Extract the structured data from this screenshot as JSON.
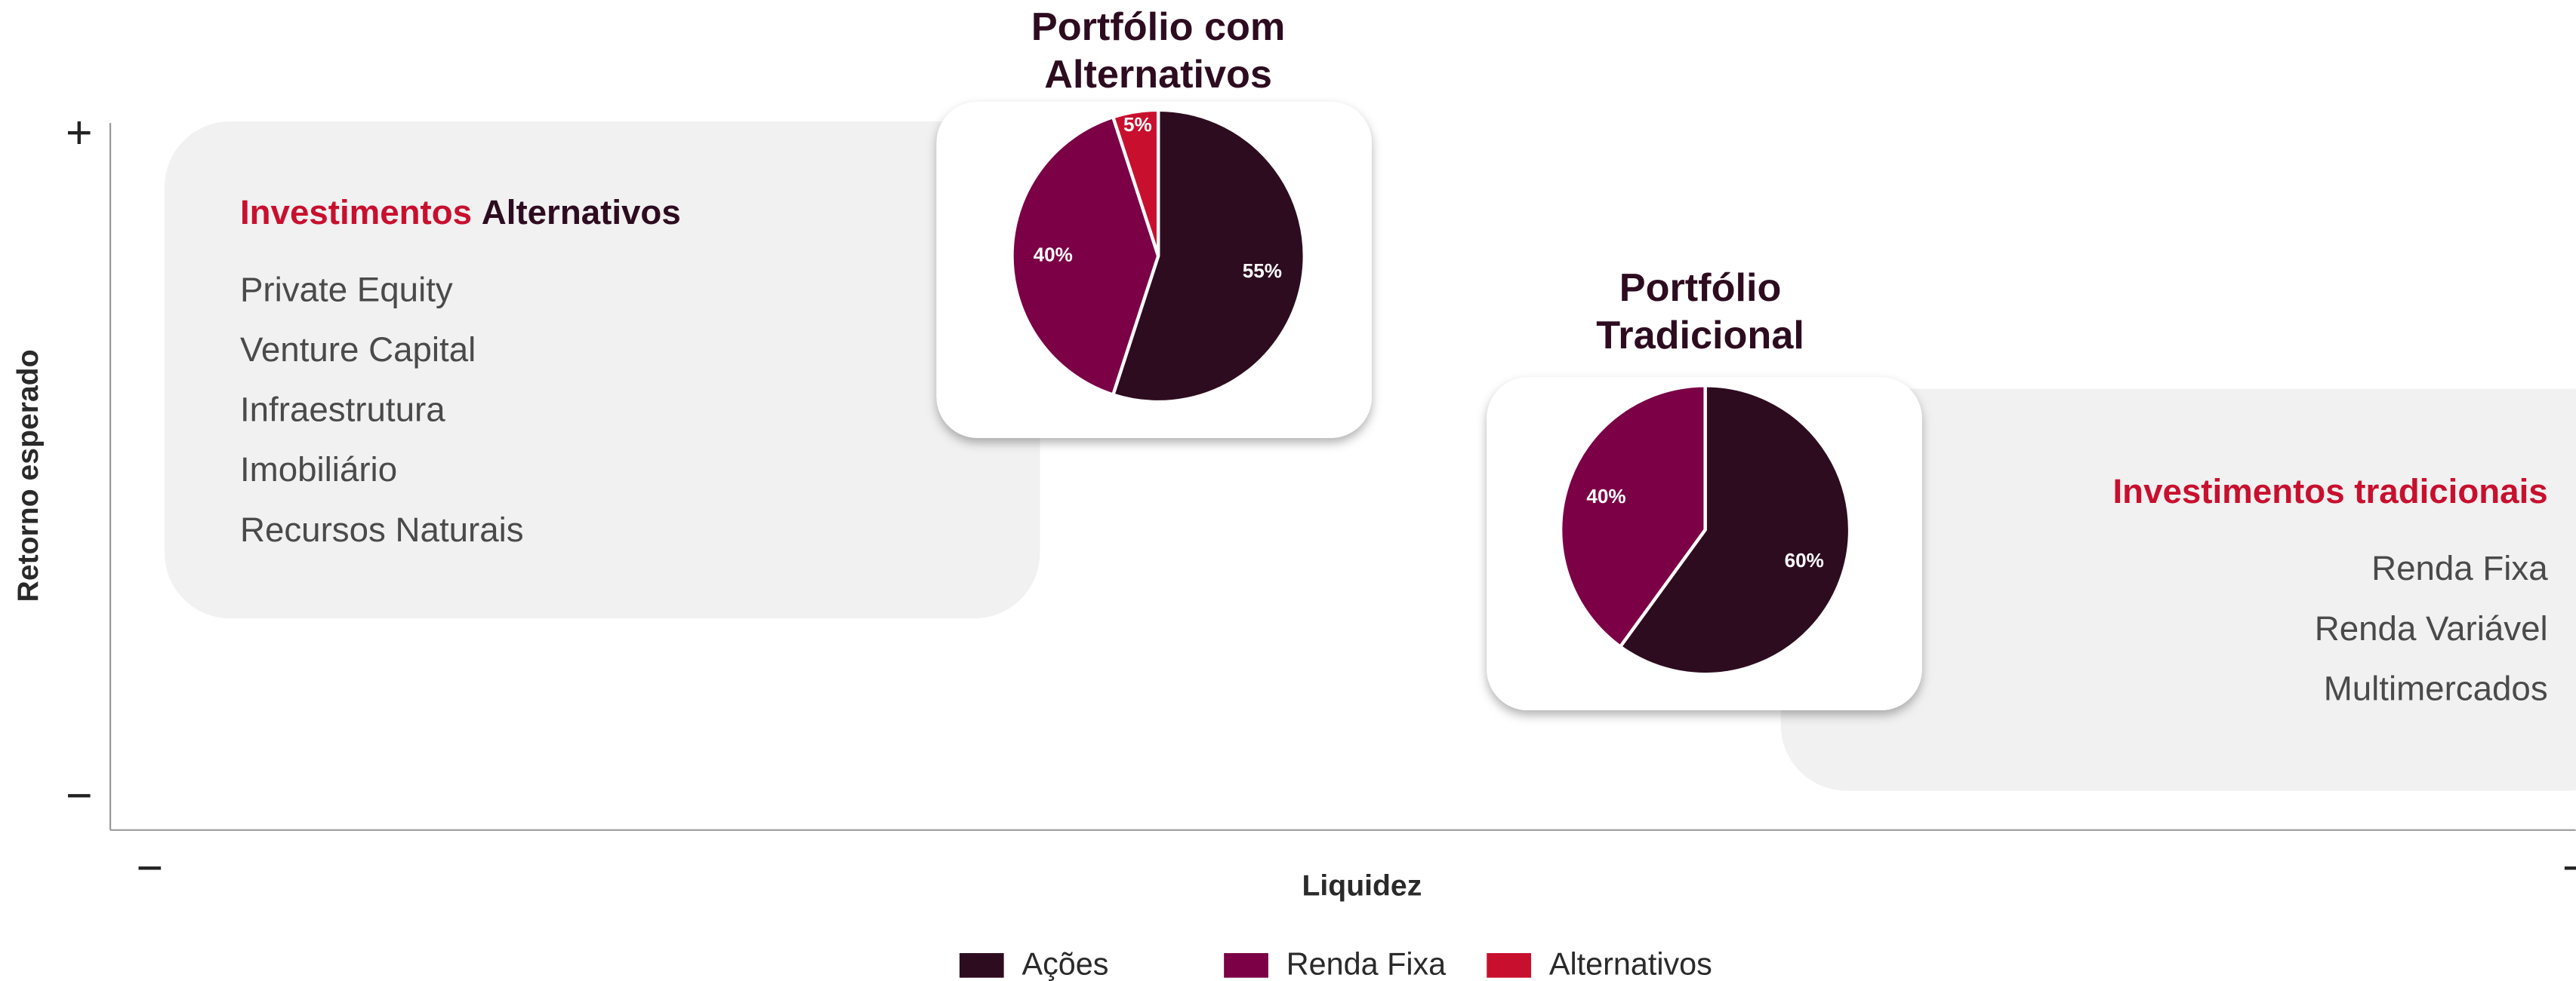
{
  "chart_data": [
    {
      "type": "pie",
      "title": [
        "Portfólio com",
        "Alternativos"
      ],
      "categories": [
        "Ações",
        "Renda Fixa",
        "Alternativos"
      ],
      "values": [
        55,
        40,
        5
      ],
      "value_labels": [
        "55%",
        "40%",
        "5%"
      ],
      "colors": [
        "#2e0c20",
        "#7b0046",
        "#c8102e"
      ]
    },
    {
      "type": "pie",
      "title": [
        "Portfólio",
        "Tradicional"
      ],
      "categories": [
        "Ações",
        "Renda Fixa"
      ],
      "values": [
        60,
        40
      ],
      "value_labels": [
        "60%",
        "40%"
      ],
      "colors": [
        "#2e0c20",
        "#7b0046"
      ]
    }
  ],
  "axes": {
    "y_label": "Retorno esperado",
    "x_label": "Liquidez",
    "y_high": "+",
    "y_low": "−",
    "x_low": "−",
    "x_high": "−"
  },
  "boxes": [
    {
      "title": [
        "Investimentos",
        "Alternativos"
      ],
      "items": [
        "Private Equity",
        "Venture Capital",
        "Infraestrutura",
        "Imobiliário",
        "Recursos Naturais"
      ]
    },
    {
      "title": [
        "Investimentos",
        "tradicionais"
      ],
      "items": [
        "Renda Fixa",
        "Renda Variável",
        "Multimercados"
      ]
    }
  ]
}
